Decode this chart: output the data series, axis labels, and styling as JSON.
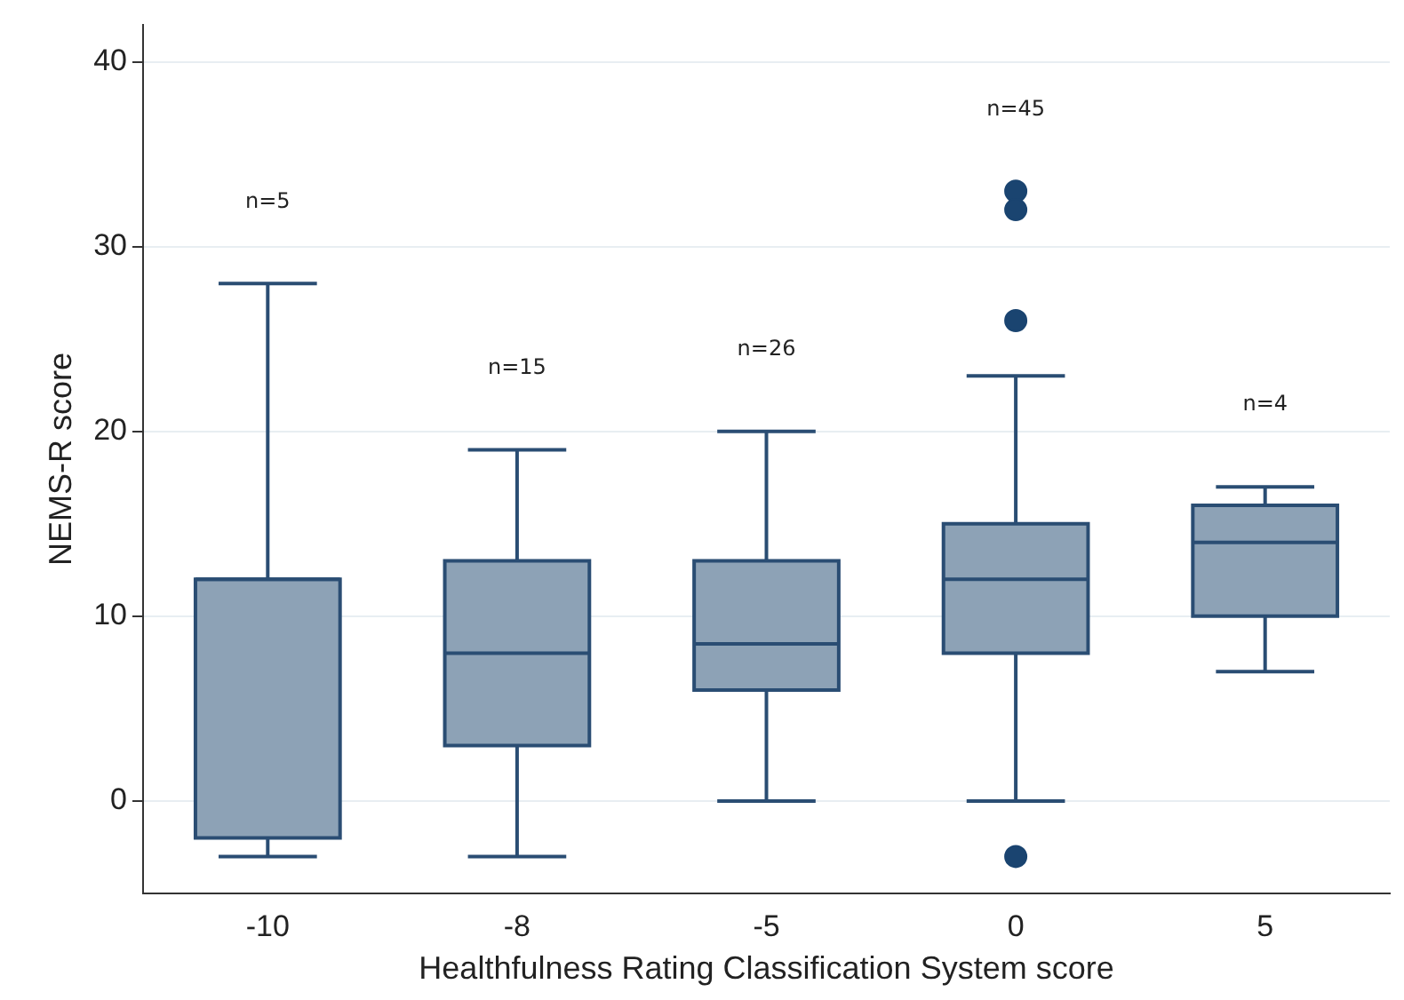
{
  "chart_data": {
    "type": "box",
    "xlabel": "Healthfulness Rating Classification System score",
    "ylabel": "NEMS-R score",
    "categories": [
      "-10",
      "-8",
      "-5",
      "0",
      "5"
    ],
    "boxes": [
      {
        "low": -3,
        "q1": -2,
        "median": 12,
        "q3": 12,
        "high": 28
      },
      {
        "low": -3,
        "q1": 3,
        "median": 8,
        "q3": 13,
        "high": 19
      },
      {
        "low": 0,
        "q1": 6,
        "median": 8.5,
        "q3": 13,
        "high": 20
      },
      {
        "low": 0,
        "q1": 8,
        "median": 12,
        "q3": 15,
        "high": 23,
        "outliers": [
          33,
          32,
          26,
          -3
        ]
      },
      {
        "low": 7,
        "q1": 10,
        "median": 14,
        "q3": 16,
        "high": 17
      }
    ],
    "color": "#8da2b6",
    "ylim": [
      -5,
      42
    ],
    "yticks": [
      0,
      10,
      20,
      30,
      40
    ],
    "grid": "y",
    "legend": false,
    "annotations": [
      "n=5",
      "n=15",
      "n=26",
      "n=45",
      "n=4"
    ]
  }
}
